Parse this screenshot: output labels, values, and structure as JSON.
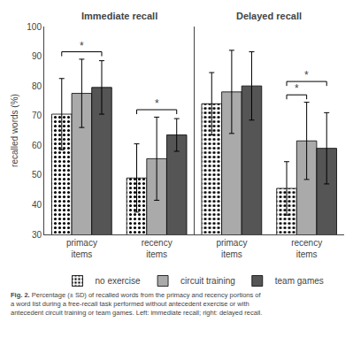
{
  "chart_data": [
    {
      "type": "bar",
      "title": "Immediate recall",
      "categories": [
        "primacy\nitems",
        "recency\nitems"
      ],
      "ylabel": "recalled words (%)",
      "series": [
        {
          "name": "no exercise",
          "color": "white",
          "marker": "dots",
          "values": [
            70.5,
            49.0
          ],
          "errors": [
            12.0,
            11.5
          ]
        },
        {
          "name": "circuit training",
          "color": "#aaaaaa",
          "values": [
            77.5,
            55.5
          ],
          "errors": [
            11.5,
            14.0
          ]
        },
        {
          "name": "team games",
          "color": "#555555",
          "values": [
            79.5,
            63.5
          ],
          "errors": [
            9.0,
            5.5
          ]
        }
      ],
      "ylim": [
        30,
        100
      ],
      "yticks": [
        30,
        40,
        50,
        60,
        70,
        80,
        90,
        100
      ],
      "grid": false,
      "legend": "bottom",
      "annotations": [
        {
          "text": "*",
          "category": "primacy\nitems",
          "series": [
            "no exercise",
            "team games"
          ]
        },
        {
          "text": "*",
          "category": "recency\nitems",
          "series": [
            "no exercise",
            "team games"
          ]
        }
      ]
    },
    {
      "type": "bar",
      "title": "Delayed recall",
      "categories": [
        "primacy\nitems",
        "recency\nitems"
      ],
      "series": [
        {
          "name": "no exercise",
          "color": "white",
          "marker": "dots",
          "values": [
            74.0,
            45.5
          ],
          "errors": [
            10.5,
            9.0
          ]
        },
        {
          "name": "circuit training",
          "color": "#aaaaaa",
          "values": [
            78.0,
            61.5
          ],
          "errors": [
            14.0,
            13.0
          ]
        },
        {
          "name": "team games",
          "color": "#555555",
          "values": [
            80.0,
            59.0
          ],
          "errors": [
            11.5,
            12.0
          ]
        }
      ],
      "ylim": [
        30,
        100
      ],
      "yticks": [
        30,
        40,
        50,
        60,
        70,
        80,
        90,
        100
      ],
      "grid": false,
      "tick_labels": "x",
      "annotations": [
        {
          "text": "*",
          "category": "recency\nitems",
          "series": [
            "no exercise",
            "circuit training"
          ]
        },
        {
          "text": "*",
          "category": "recency\nitems",
          "series": [
            "no exercise",
            "team games"
          ]
        }
      ]
    }
  ],
  "caption": {
    "bold": "Fig. 2.",
    "text": " Percentage (± SD) of recalled words from the primacy and recency portions of\na word list during a free-recall task performed without antecedent exercise or with\nantecedent circuit training or team games. Left: immediate recall; right: delayed recall."
  }
}
